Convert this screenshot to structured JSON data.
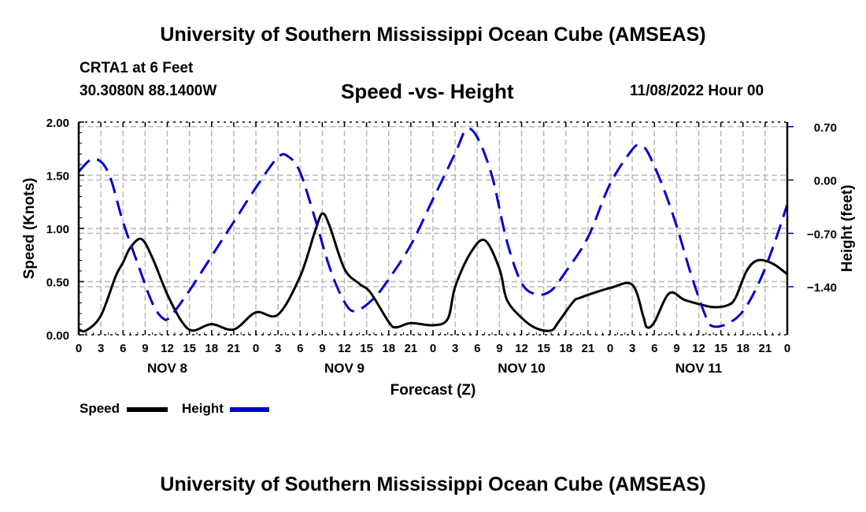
{
  "header": {
    "main_title": "University of Southern Mississippi Ocean Cube (AMSEAS)",
    "station": "CRTA1 at 6 Feet",
    "coordinates": "30.3080N  88.1400W",
    "chart_title": "Speed -vs- Height",
    "datetime": "11/08/2022 Hour 00"
  },
  "footer": {
    "bottom_title": "University of Southern Mississippi Ocean Cube (AMSEAS)"
  },
  "legend": {
    "items": [
      {
        "label": "Speed",
        "color": "#000000",
        "style": "solid"
      },
      {
        "label": "Height",
        "color": "#0000cc",
        "style": "dashed"
      }
    ]
  },
  "chart_data": {
    "type": "line",
    "title": "Speed -vs- Height",
    "xlabel": "Forecast (Z)",
    "ylabel": "Speed (Knots)",
    "y2label": "Height (feet)",
    "xlim": [
      0,
      96
    ],
    "ylim": [
      0,
      2.0
    ],
    "y2lim": [
      -2.03,
      0.76
    ],
    "grid": true,
    "legend_position": "bottom-left",
    "x_tick_labels": [
      "0",
      "3",
      "6",
      "9",
      "12",
      "15",
      "18",
      "21",
      "0",
      "3",
      "6",
      "9",
      "12",
      "15",
      "18",
      "21",
      "0",
      "3",
      "6",
      "9",
      "12",
      "15",
      "18",
      "21",
      "0",
      "3",
      "6",
      "9",
      "12",
      "15",
      "18",
      "21",
      "0"
    ],
    "x_tick_hours": [
      0,
      3,
      6,
      9,
      12,
      15,
      18,
      21,
      24,
      27,
      30,
      33,
      36,
      39,
      42,
      45,
      48,
      51,
      54,
      57,
      60,
      63,
      66,
      69,
      72,
      75,
      78,
      81,
      84,
      87,
      90,
      93,
      96
    ],
    "day_labels": [
      {
        "label": "NOV 8",
        "hour": 12
      },
      {
        "label": "NOV 9",
        "hour": 36
      },
      {
        "label": "NOV 10",
        "hour": 60
      },
      {
        "label": "NOV 11",
        "hour": 84
      }
    ],
    "y_ticks": [
      0.0,
      0.5,
      1.0,
      1.5,
      2.0
    ],
    "y_tick_labels": [
      "0.00",
      "0.50",
      "1.00",
      "1.50",
      "2.00"
    ],
    "y2_ticks": [
      0.7,
      0.0,
      -0.7,
      -1.4
    ],
    "y2_tick_labels": [
      "0.70",
      "0.00",
      "−0.70",
      "−1.40"
    ],
    "series": [
      {
        "name": "Speed",
        "axis": "left",
        "color": "#000000",
        "x": [
          0,
          1,
          3,
          5,
          6,
          7,
          8.5,
          10,
          12,
          14,
          15.5,
          18,
          21,
          24,
          27,
          30,
          32,
          33,
          34,
          36,
          38,
          39.5,
          42,
          43,
          45,
          48,
          50,
          51,
          53,
          55,
          57,
          58,
          60,
          62,
          64,
          65,
          67,
          68,
          72,
          75,
          76.5,
          77,
          78,
          80,
          82,
          84,
          86,
          88,
          89,
          90.5,
          92,
          94,
          96
        ],
        "values": [
          0.05,
          0.04,
          0.18,
          0.55,
          0.68,
          0.82,
          0.9,
          0.72,
          0.38,
          0.12,
          0.04,
          0.1,
          0.05,
          0.21,
          0.19,
          0.55,
          0.97,
          1.14,
          1.02,
          0.62,
          0.48,
          0.4,
          0.12,
          0.07,
          0.11,
          0.09,
          0.15,
          0.45,
          0.76,
          0.89,
          0.62,
          0.33,
          0.16,
          0.06,
          0.04,
          0.12,
          0.31,
          0.35,
          0.44,
          0.47,
          0.17,
          0.07,
          0.12,
          0.39,
          0.33,
          0.29,
          0.26,
          0.28,
          0.35,
          0.6,
          0.7,
          0.67,
          0.57
        ]
      },
      {
        "name": "Height",
        "axis": "right",
        "color": "#0000cc",
        "x": [
          0,
          2,
          4,
          6,
          8,
          10,
          11.5,
          12.5,
          15,
          18,
          21,
          24,
          27,
          28.5,
          30,
          32,
          34,
          36,
          37.5,
          40,
          42,
          45,
          48,
          51,
          52.5,
          54,
          56,
          58,
          60,
          62,
          64,
          66,
          69,
          72,
          75,
          76,
          77,
          79,
          81,
          83,
          85,
          86,
          88,
          90,
          92,
          94,
          96
        ],
        "values": [
          0.11,
          0.28,
          0.1,
          -0.55,
          -1.1,
          -1.62,
          -1.82,
          -1.78,
          -1.45,
          -1.0,
          -0.55,
          -0.1,
          0.3,
          0.3,
          0.1,
          -0.5,
          -1.15,
          -1.6,
          -1.72,
          -1.55,
          -1.3,
          -0.85,
          -0.25,
          0.35,
          0.66,
          0.56,
          0.05,
          -0.8,
          -1.35,
          -1.5,
          -1.45,
          -1.2,
          -0.75,
          -0.05,
          0.4,
          0.45,
          0.38,
          -0.05,
          -0.6,
          -1.25,
          -1.8,
          -1.92,
          -1.88,
          -1.72,
          -1.38,
          -0.9,
          -0.32
        ]
      }
    ]
  }
}
